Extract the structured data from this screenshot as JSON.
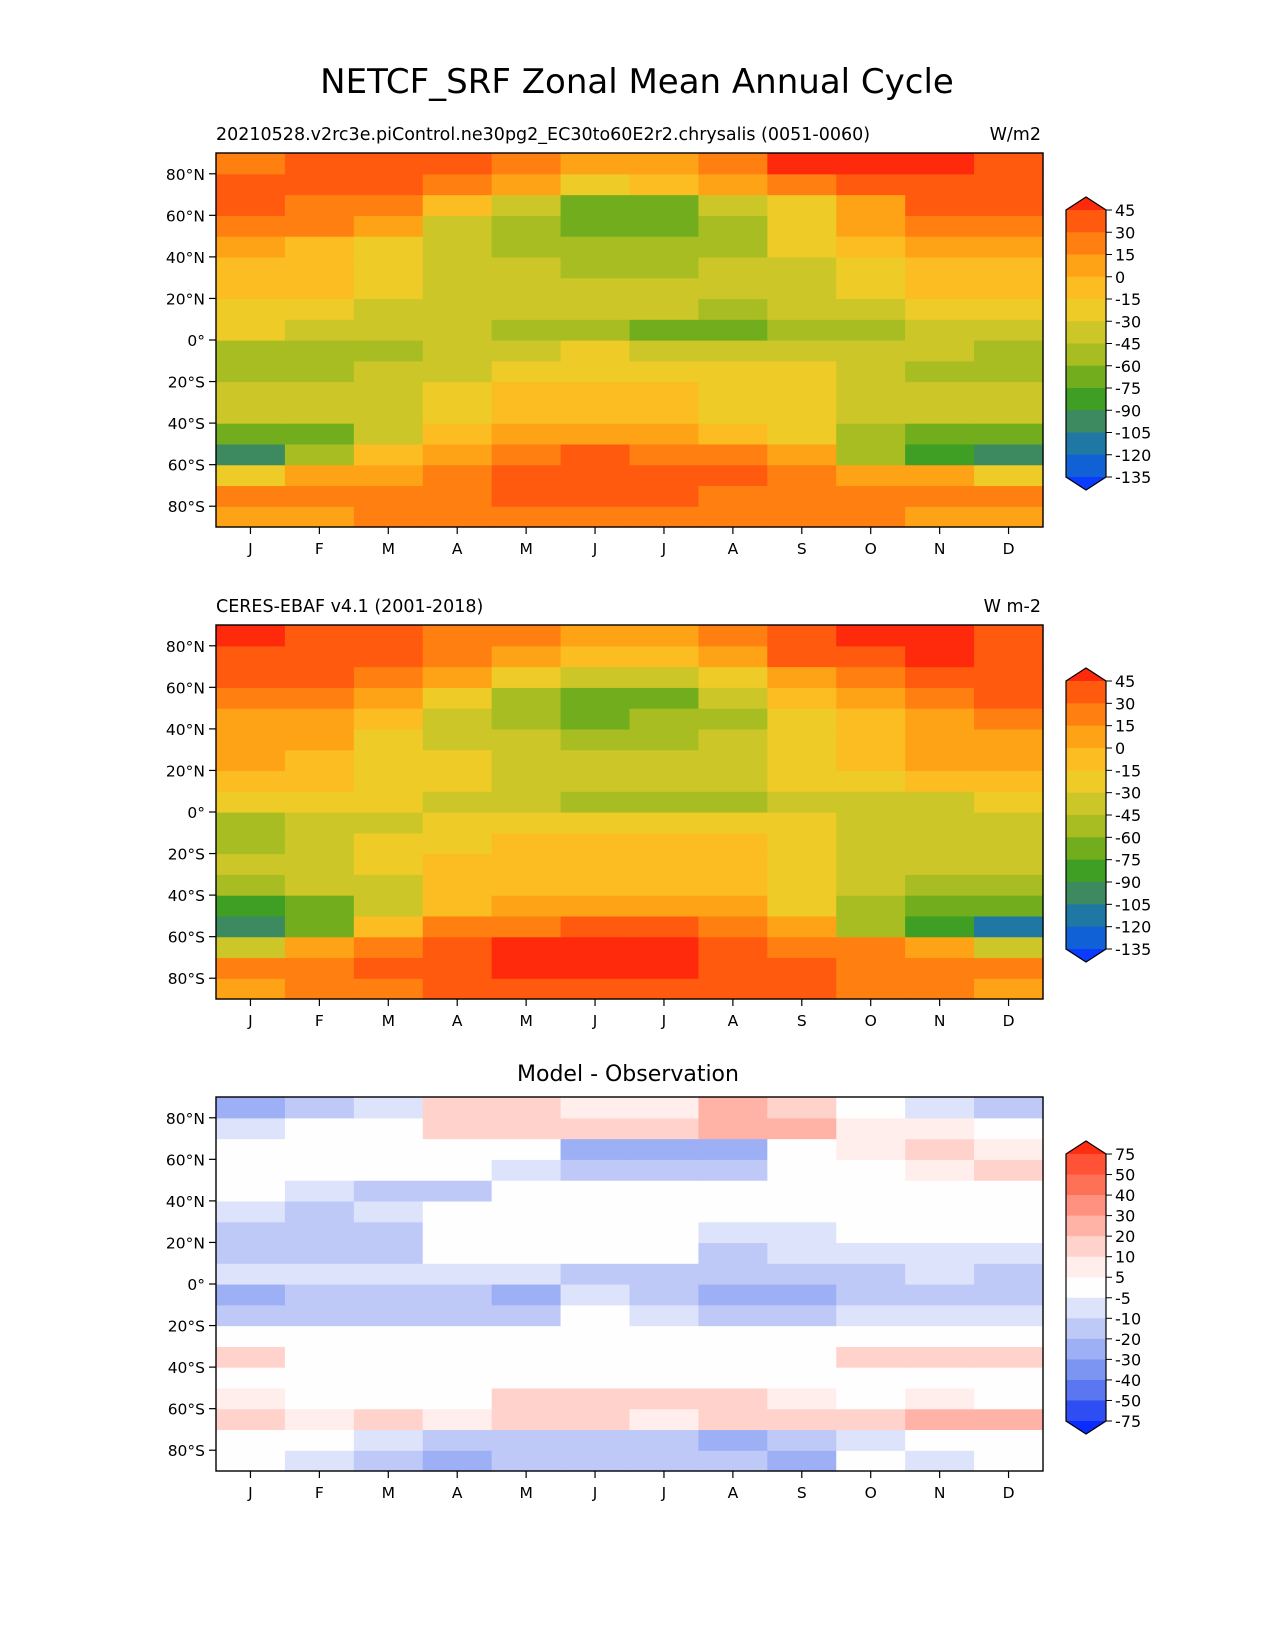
{
  "figure": {
    "title": "NETCF_SRF Zonal Mean Annual Cycle"
  },
  "chart_data": [
    {
      "type": "heatmap",
      "panel": "model",
      "title_left": "20210528.v2rc3e.piControl.ne30pg2_EC30to60E2r2.chrysalis (0051-0060)",
      "title_right": "W/m2",
      "x_categories": [
        "J",
        "F",
        "M",
        "A",
        "M",
        "J",
        "J",
        "A",
        "S",
        "O",
        "N",
        "D"
      ],
      "y_ticks": [
        80,
        60,
        40,
        20,
        0,
        -20,
        -40,
        -60,
        -80
      ],
      "y_tick_labels": [
        "80°N",
        "60°N",
        "40°N",
        "20°N",
        "0°",
        "20°S",
        "40°S",
        "60°S",
        "80°S"
      ],
      "ylim": [
        -90,
        90
      ],
      "grid": false,
      "colorbar": {
        "levels": [
          45,
          30,
          15,
          0,
          -15,
          -30,
          -45,
          -60,
          -75,
          -90,
          -105,
          -120,
          -135
        ],
        "labels": [
          "45",
          "30",
          "15",
          "0",
          "-15",
          "-30",
          "-45",
          "-60",
          "-75",
          "-90",
          "-105",
          "-120",
          "-135"
        ],
        "colors": [
          "#ff2a0c",
          "#ff5a0e",
          "#ff8010",
          "#ffa316",
          "#fbbd22",
          "#eecb26",
          "#cdc628",
          "#a8bd22",
          "#71ad1c",
          "#3f9e24",
          "#3d8a60",
          "#1f78a4",
          "#1060d6",
          "#0a3cff"
        ],
        "extend": "both"
      },
      "latitudes": [
        -85,
        -75,
        -65,
        -55,
        -45,
        -35,
        -25,
        -15,
        -5,
        5,
        15,
        25,
        35,
        45,
        55,
        65,
        75,
        85
      ],
      "values": [
        [
          10,
          12,
          18,
          22,
          24,
          24,
          25,
          22,
          18,
          16,
          12,
          10
        ],
        [
          22,
          18,
          22,
          30,
          32,
          32,
          32,
          30,
          26,
          24,
          22,
          18
        ],
        [
          -25,
          8,
          10,
          30,
          40,
          45,
          42,
          38,
          25,
          15,
          2,
          -20
        ],
        [
          -100,
          -55,
          -5,
          15,
          25,
          32,
          30,
          28,
          8,
          -45,
          -75,
          -95
        ],
        [
          -70,
          -60,
          -40,
          -10,
          2,
          8,
          5,
          -5,
          -25,
          -45,
          -65,
          -70
        ],
        [
          -40,
          -38,
          -35,
          -20,
          -10,
          -8,
          -10,
          -15,
          -20,
          -38,
          -40,
          -42
        ],
        [
          -40,
          -35,
          -30,
          -18,
          -12,
          -10,
          -12,
          -15,
          -22,
          -32,
          -38,
          -40
        ],
        [
          -52,
          -50,
          -42,
          -30,
          -22,
          -20,
          -22,
          -25,
          -28,
          -38,
          -45,
          -50
        ],
        [
          -48,
          -46,
          -46,
          -44,
          -36,
          -28,
          -30,
          -32,
          -40,
          -42,
          -44,
          -48
        ],
        [
          -25,
          -30,
          -32,
          -38,
          -45,
          -55,
          -65,
          -68,
          -55,
          -45,
          -35,
          -30
        ],
        [
          -22,
          -28,
          -32,
          -32,
          -30,
          -38,
          -40,
          -45,
          -38,
          -32,
          -28,
          -24
        ],
        [
          -2,
          -10,
          -22,
          -30,
          -32,
          -38,
          -40,
          -40,
          -32,
          -22,
          -10,
          -4
        ],
        [
          0,
          -12,
          -25,
          -32,
          -40,
          -45,
          -45,
          -42,
          -30,
          -18,
          -5,
          0
        ],
        [
          8,
          0,
          -20,
          -40,
          -50,
          -55,
          -52,
          -45,
          -28,
          -10,
          5,
          8
        ],
        [
          25,
          18,
          2,
          -30,
          -50,
          -65,
          -60,
          -45,
          -20,
          5,
          20,
          28
        ],
        [
          35,
          30,
          20,
          -5,
          -35,
          -70,
          -60,
          -42,
          -15,
          15,
          32,
          40
        ],
        [
          38,
          36,
          35,
          25,
          10,
          -15,
          -10,
          5,
          30,
          40,
          45,
          38
        ],
        [
          28,
          38,
          38,
          38,
          22,
          15,
          12,
          28,
          48,
          48,
          48,
          36
        ]
      ]
    },
    {
      "type": "heatmap",
      "panel": "observation",
      "title_left": "CERES-EBAF v4.1 (2001-2018)",
      "title_right": "W m-2",
      "x_categories": [
        "J",
        "F",
        "M",
        "A",
        "M",
        "J",
        "J",
        "A",
        "S",
        "O",
        "N",
        "D"
      ],
      "y_ticks": [
        80,
        60,
        40,
        20,
        0,
        -20,
        -40,
        -60,
        -80
      ],
      "y_tick_labels": [
        "80°N",
        "60°N",
        "40°N",
        "20°N",
        "0°",
        "20°S",
        "40°S",
        "60°S",
        "80°S"
      ],
      "ylim": [
        -90,
        90
      ],
      "grid": false,
      "colorbar": {
        "levels": [
          45,
          30,
          15,
          0,
          -15,
          -30,
          -45,
          -60,
          -75,
          -90,
          -105,
          -120,
          -135
        ],
        "labels": [
          "45",
          "30",
          "15",
          "0",
          "-15",
          "-30",
          "-45",
          "-60",
          "-75",
          "-90",
          "-105",
          "-120",
          "-135"
        ],
        "colors": [
          "#ff2a0c",
          "#ff5a0e",
          "#ff8010",
          "#ffa316",
          "#fbbd22",
          "#eecb26",
          "#cdc628",
          "#a8bd22",
          "#71ad1c",
          "#3f9e24",
          "#3d8a60",
          "#1f78a4",
          "#1060d6",
          "#0a3cff"
        ],
        "extend": "both"
      },
      "latitudes": [
        -85,
        -75,
        -65,
        -55,
        -45,
        -35,
        -25,
        -15,
        -5,
        5,
        15,
        25,
        35,
        45,
        55,
        65,
        75,
        85
      ],
      "values": [
        [
          12,
          20,
          28,
          32,
          35,
          35,
          35,
          35,
          32,
          25,
          22,
          14
        ],
        [
          18,
          26,
          32,
          45,
          48,
          50,
          48,
          45,
          38,
          28,
          22,
          16
        ],
        [
          -40,
          10,
          20,
          40,
          48,
          50,
          48,
          42,
          30,
          18,
          5,
          -35
        ],
        [
          -100,
          -65,
          -8,
          18,
          30,
          38,
          35,
          30,
          5,
          -45,
          -80,
          -110
        ],
        [
          -75,
          -60,
          -40,
          0,
          10,
          15,
          12,
          2,
          -25,
          -45,
          -70,
          -70
        ],
        [
          -45,
          -40,
          -32,
          -12,
          -2,
          0,
          -2,
          -8,
          -25,
          -38,
          -45,
          -45
        ],
        [
          -40,
          -35,
          -25,
          -10,
          -2,
          0,
          -2,
          -5,
          -20,
          -30,
          -38,
          -40
        ],
        [
          -45,
          -40,
          -28,
          -20,
          -10,
          -8,
          -10,
          -12,
          -20,
          -32,
          -42,
          -42
        ],
        [
          -45,
          -40,
          -32,
          -28,
          -20,
          -15,
          -18,
          -20,
          -25,
          -35,
          -40,
          -42
        ],
        [
          -20,
          -25,
          -28,
          -35,
          -40,
          -48,
          -52,
          -50,
          -42,
          -35,
          -30,
          -22
        ],
        [
          -2,
          -8,
          -18,
          -28,
          -35,
          -40,
          -42,
          -38,
          -28,
          -18,
          -8,
          -2
        ],
        [
          2,
          0,
          -15,
          -25,
          -30,
          -35,
          -38,
          -35,
          -25,
          -10,
          2,
          4
        ],
        [
          8,
          2,
          -15,
          -30,
          -40,
          -45,
          -48,
          -42,
          -28,
          -10,
          5,
          10
        ],
        [
          15,
          8,
          -10,
          -35,
          -50,
          -60,
          -58,
          -45,
          -25,
          -5,
          12,
          18
        ],
        [
          28,
          22,
          10,
          -20,
          -45,
          -65,
          -62,
          -40,
          -12,
          12,
          28,
          32
        ],
        [
          38,
          32,
          25,
          5,
          -20,
          -40,
          -35,
          -20,
          10,
          28,
          40,
          42
        ],
        [
          40,
          40,
          38,
          20,
          10,
          0,
          -5,
          10,
          32,
          42,
          48,
          42
        ],
        [
          48,
          42,
          42,
          28,
          20,
          12,
          10,
          22,
          45,
          48,
          48,
          44
        ]
      ]
    },
    {
      "type": "heatmap",
      "panel": "difference",
      "title": "Model - Observation",
      "x_categories": [
        "J",
        "F",
        "M",
        "A",
        "M",
        "J",
        "J",
        "A",
        "S",
        "O",
        "N",
        "D"
      ],
      "y_ticks": [
        80,
        60,
        40,
        20,
        0,
        -20,
        -40,
        -60,
        -80
      ],
      "y_tick_labels": [
        "80°N",
        "60°N",
        "40°N",
        "20°N",
        "0°",
        "20°S",
        "40°S",
        "60°S",
        "80°S"
      ],
      "ylim": [
        -90,
        90
      ],
      "grid": false,
      "colorbar": {
        "levels": [
          75,
          50,
          40,
          30,
          20,
          10,
          5,
          -5,
          -10,
          -20,
          -30,
          -40,
          -50,
          -75
        ],
        "labels": [
          "75",
          "50",
          "40",
          "30",
          "20",
          "10",
          "5",
          "-5",
          "-10",
          "-20",
          "-30",
          "-40",
          "-50",
          "-75"
        ],
        "colors": [
          "#ff2e12",
          "#ff5236",
          "#ff7157",
          "#ff9180",
          "#ffb3a6",
          "#ffd3cc",
          "#ffeeeb",
          "#fefefe",
          "#dce3fb",
          "#bec9f8",
          "#9db0f5",
          "#7d95f2",
          "#5a76f0",
          "#2e4df2",
          "#0a2cff"
        ],
        "extend": "both"
      },
      "latitudes": [
        -85,
        -75,
        -65,
        -55,
        -45,
        -35,
        -25,
        -15,
        -5,
        5,
        15,
        25,
        35,
        45,
        55,
        65,
        75,
        85
      ],
      "values": [
        [
          -2,
          -8,
          -15,
          -20,
          -18,
          -18,
          -15,
          -18,
          -20,
          -3,
          -8,
          -3
        ],
        [
          2,
          0,
          -8,
          -15,
          -18,
          -18,
          -18,
          -22,
          -15,
          -8,
          -3,
          0
        ],
        [
          15,
          8,
          12,
          8,
          12,
          12,
          10,
          12,
          15,
          18,
          22,
          25
        ],
        [
          10,
          2,
          2,
          4,
          12,
          15,
          15,
          12,
          6,
          2,
          6,
          4
        ],
        [
          2,
          0,
          0,
          0,
          0,
          0,
          0,
          0,
          0,
          0,
          0,
          0
        ],
        [
          15,
          0,
          0,
          0,
          0,
          0,
          0,
          0,
          0,
          15,
          12,
          15
        ],
        [
          0,
          0,
          0,
          0,
          0,
          0,
          0,
          0,
          0,
          0,
          0,
          0
        ],
        [
          -12,
          -15,
          -15,
          -12,
          -12,
          0,
          -8,
          -12,
          -12,
          -8,
          -6,
          -8
        ],
        [
          -22,
          -15,
          -15,
          -18,
          -25,
          -8,
          -18,
          -20,
          -22,
          -18,
          -15,
          -18
        ],
        [
          -6,
          -8,
          -8,
          -8,
          -8,
          -12,
          -15,
          -18,
          -18,
          -15,
          -6,
          -12
        ],
        [
          -10,
          -12,
          -12,
          0,
          0,
          0,
          0,
          -10,
          -8,
          -6,
          -6,
          -8
        ],
        [
          -12,
          -12,
          -10,
          0,
          0,
          0,
          0,
          -8,
          -6,
          0,
          0,
          0
        ],
        [
          -8,
          -12,
          -8,
          0,
          0,
          0,
          0,
          0,
          0,
          0,
          0,
          0
        ],
        [
          0,
          -8,
          -12,
          -10,
          0,
          0,
          0,
          0,
          0,
          0,
          0,
          0
        ],
        [
          0,
          0,
          0,
          0,
          -8,
          -10,
          -10,
          -12,
          0,
          0,
          10,
          12
        ],
        [
          4,
          0,
          0,
          0,
          0,
          -25,
          -25,
          -20,
          0,
          10,
          12,
          8
        ],
        [
          -8,
          0,
          0,
          15,
          20,
          15,
          12,
          25,
          25,
          10,
          8,
          0
        ],
        [
          -22,
          -18,
          -8,
          15,
          20,
          10,
          8,
          25,
          18,
          -3,
          -8,
          -12
        ]
      ]
    }
  ]
}
